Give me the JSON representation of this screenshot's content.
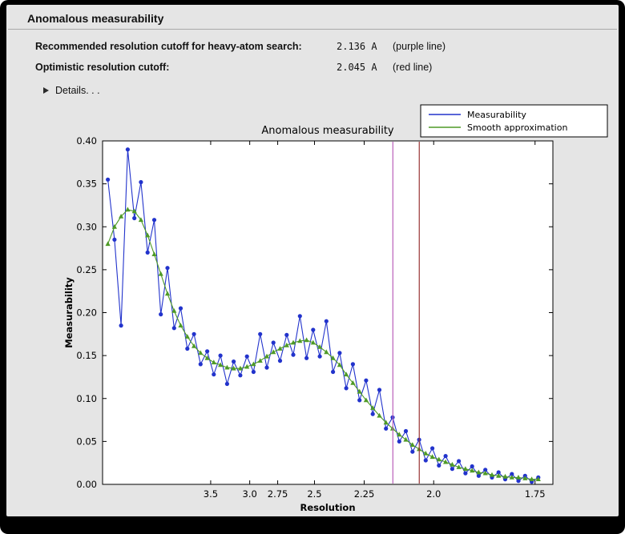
{
  "window": {
    "title": "Anomalous measurability"
  },
  "summary": {
    "rows": [
      {
        "label": "Recommended resolution cutoff for heavy-atom search:",
        "value": "2.136 A",
        "note": "(purple line)"
      },
      {
        "label": "Optimistic resolution cutoff:",
        "value": "2.045 A",
        "note": "(red line)"
      }
    ]
  },
  "details": {
    "label": "Details. . ."
  },
  "chart_data": {
    "type": "line",
    "title": "Anomalous measurability",
    "xlabel": "Resolution",
    "ylabel": "Measurability",
    "x_scale": "1/d^2 (resolution in Angstrom, reversed)",
    "x_ticks_d": [
      3.5,
      3.0,
      2.75,
      2.5,
      2.25,
      2.0,
      1.75
    ],
    "x_range_s": [
      0.0,
      0.34
    ],
    "ylim": [
      0.0,
      0.4
    ],
    "y_ticks": [
      "0.00",
      "0.05",
      "0.10",
      "0.15",
      "0.20",
      "0.25",
      "0.30",
      "0.35",
      "0.40"
    ],
    "legend_position": "upper right",
    "x_s": [
      0.004,
      0.009,
      0.014,
      0.019,
      0.024,
      0.029,
      0.034,
      0.039,
      0.044,
      0.049,
      0.054,
      0.059,
      0.064,
      0.069,
      0.074,
      0.079,
      0.084,
      0.089,
      0.094,
      0.099,
      0.104,
      0.109,
      0.114,
      0.119,
      0.124,
      0.129,
      0.134,
      0.139,
      0.144,
      0.149,
      0.154,
      0.159,
      0.164,
      0.169,
      0.174,
      0.179,
      0.184,
      0.189,
      0.194,
      0.199,
      0.204,
      0.209,
      0.214,
      0.219,
      0.224,
      0.229,
      0.234,
      0.239,
      0.244,
      0.249,
      0.254,
      0.259,
      0.264,
      0.269,
      0.274,
      0.279,
      0.284,
      0.289,
      0.294,
      0.299,
      0.304,
      0.309,
      0.314,
      0.319,
      0.324,
      0.329
    ],
    "series": [
      {
        "name": "Measurability",
        "color": "#2233cc",
        "marker": "circle",
        "y": [
          0.355,
          0.285,
          0.185,
          0.39,
          0.31,
          0.352,
          0.27,
          0.308,
          0.198,
          0.252,
          0.182,
          0.205,
          0.158,
          0.175,
          0.14,
          0.155,
          0.128,
          0.15,
          0.117,
          0.143,
          0.127,
          0.149,
          0.131,
          0.175,
          0.136,
          0.165,
          0.144,
          0.174,
          0.151,
          0.196,
          0.147,
          0.18,
          0.149,
          0.19,
          0.131,
          0.153,
          0.112,
          0.14,
          0.098,
          0.121,
          0.082,
          0.11,
          0.065,
          0.078,
          0.05,
          0.062,
          0.038,
          0.052,
          0.028,
          0.042,
          0.022,
          0.033,
          0.018,
          0.027,
          0.013,
          0.021,
          0.01,
          0.017,
          0.008,
          0.014,
          0.006,
          0.012,
          0.004,
          0.01,
          0.003,
          0.008
        ]
      },
      {
        "name": "Smooth approximation",
        "color": "#4e9a26",
        "marker": "triangle",
        "y": [
          0.28,
          0.3,
          0.312,
          0.32,
          0.318,
          0.308,
          0.29,
          0.268,
          0.245,
          0.222,
          0.202,
          0.185,
          0.172,
          0.161,
          0.153,
          0.147,
          0.142,
          0.139,
          0.136,
          0.135,
          0.135,
          0.137,
          0.14,
          0.144,
          0.149,
          0.154,
          0.158,
          0.162,
          0.165,
          0.167,
          0.168,
          0.165,
          0.16,
          0.154,
          0.147,
          0.139,
          0.128,
          0.118,
          0.108,
          0.098,
          0.089,
          0.08,
          0.072,
          0.065,
          0.058,
          0.052,
          0.046,
          0.041,
          0.036,
          0.032,
          0.029,
          0.026,
          0.023,
          0.02,
          0.018,
          0.016,
          0.014,
          0.013,
          0.011,
          0.01,
          0.009,
          0.008,
          0.008,
          0.007,
          0.006,
          0.006
        ]
      }
    ],
    "vlines": [
      {
        "name": "purple-line",
        "resolution": 2.136,
        "color": "#bb5fbb"
      },
      {
        "name": "red-line",
        "resolution": 2.045,
        "color": "#993333"
      }
    ]
  }
}
